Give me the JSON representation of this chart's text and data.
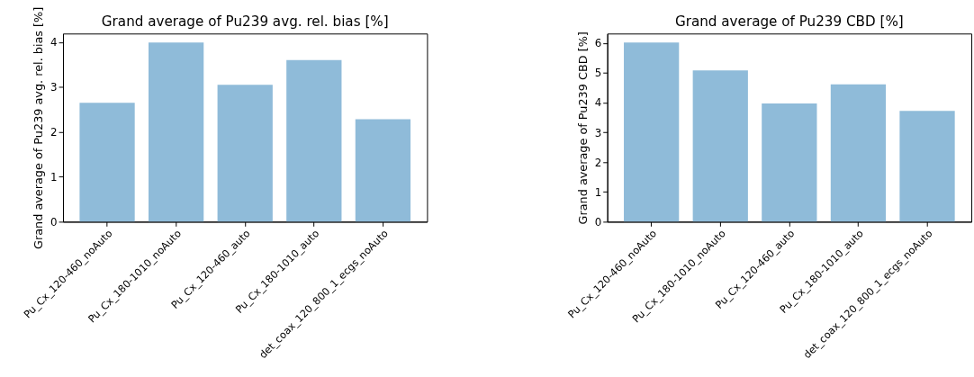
{
  "chart_data": [
    {
      "type": "bar",
      "title": "Grand average of Pu239 avg. rel. bias [%]",
      "ylabel": "Grand average of Pu239 avg. rel. bias [%]",
      "categories": [
        "Pu_Cx_120-460_noAuto",
        "Pu_Cx_180-1010_noAuto",
        "Pu_Cx_120-460_auto",
        "Pu_Cx_180-1010_auto",
        "det_coax_120_800_1_ecgs_noAuto"
      ],
      "values": [
        2.65,
        3.99,
        3.05,
        3.6,
        2.28
      ],
      "color": "#8fbbd9",
      "ylim": [
        0,
        4.19
      ],
      "yticks": [
        0,
        1,
        2,
        3,
        4
      ]
    },
    {
      "type": "bar",
      "title": "Grand average of Pu239 CBD [%]",
      "ylabel": "Grand average of Pu239 CBD [%]",
      "categories": [
        "Pu_Cx_120-460_noAuto",
        "Pu_Cx_180-1010_noAuto",
        "Pu_Cx_120-460_auto",
        "Pu_Cx_180-1010_auto",
        "det_coax_120_800_1_ecgs_noAuto"
      ],
      "values": [
        6.02,
        5.08,
        3.97,
        4.61,
        3.72
      ],
      "color": "#8fbbd9",
      "ylim": [
        0,
        6.32
      ],
      "yticks": [
        0,
        1,
        2,
        3,
        4,
        5,
        6
      ]
    }
  ]
}
